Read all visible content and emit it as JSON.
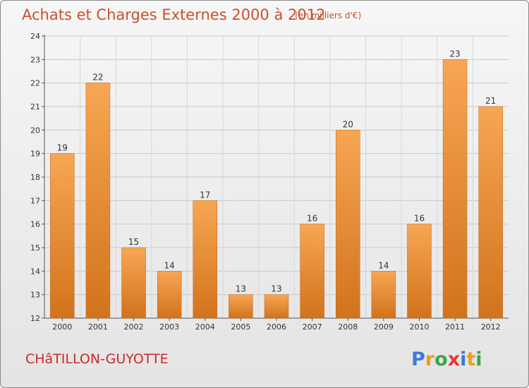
{
  "chart_data": {
    "type": "bar",
    "title": "Achats et Charges Externes 2000 à 2012",
    "subtitle": "(en milliers d'€)",
    "categories": [
      "2000",
      "2001",
      "2002",
      "2003",
      "2004",
      "2005",
      "2006",
      "2007",
      "2008",
      "2009",
      "2010",
      "2011",
      "2012"
    ],
    "values": [
      19,
      22,
      15,
      14,
      17,
      13,
      13,
      16,
      20,
      14,
      16,
      23,
      21
    ],
    "ylim": [
      12,
      24
    ],
    "yticks": [
      12,
      13,
      14,
      15,
      16,
      17,
      18,
      19,
      20,
      21,
      22,
      23,
      24
    ],
    "grid": true,
    "bar_color": "#f0923a"
  },
  "footer": {
    "commune": "CHâTILLON-GUYOTTE",
    "logo": {
      "letters": [
        "P",
        "r",
        "o",
        "x",
        "i",
        "t",
        "i"
      ],
      "colors": [
        "#3a7bd5",
        "#f29a1e",
        "#3aa64a",
        "#e03a3a",
        "#3a7bd5",
        "#f29a1e",
        "#3aa64a"
      ]
    }
  }
}
